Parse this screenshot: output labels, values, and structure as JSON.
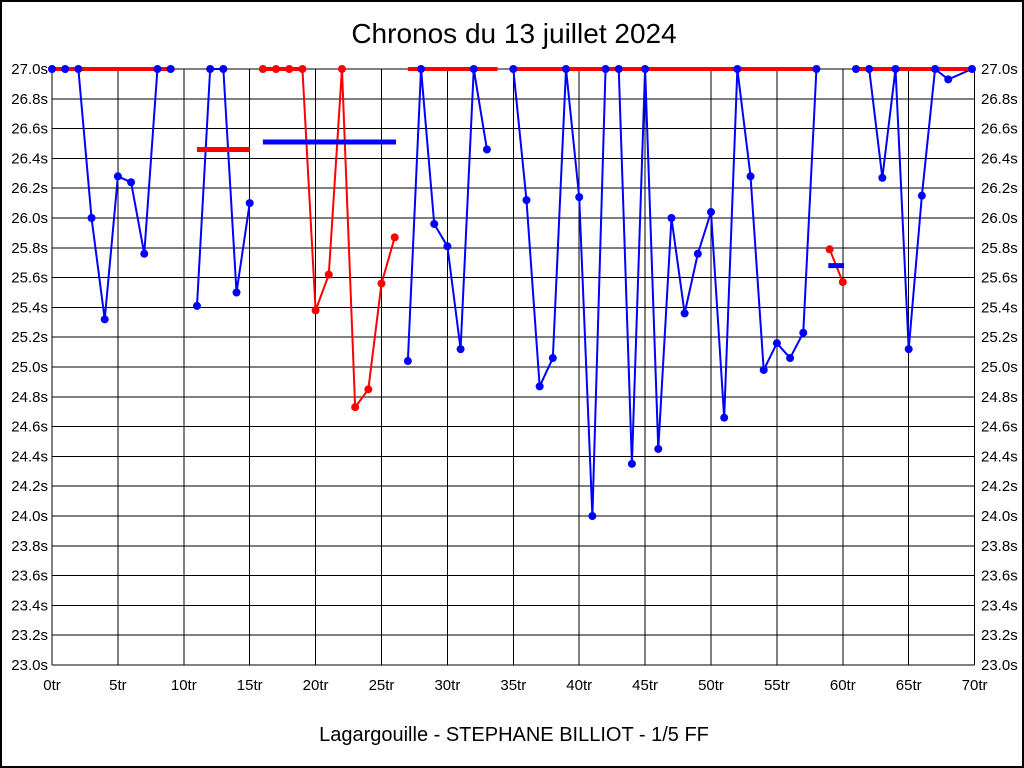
{
  "title": "Chronos du 13 juillet 2024",
  "caption": "Lagargouille - STEPHANE BILLIOT - 1/5 FF",
  "colors": {
    "blue": "#0000ff",
    "red": "#ff0000",
    "grid": "#000000",
    "background": "#ffffff"
  },
  "axes": {
    "y_left_labels": [
      "27.0s",
      "26.8s",
      "26.6s",
      "26.4s",
      "26.2s",
      "26.0s",
      "25.8s",
      "25.6s",
      "25.4s",
      "25.2s",
      "25.0s",
      "24.8s",
      "24.6s",
      "24.4s",
      "24.2s",
      "24.0s",
      "23.8s",
      "23.6s",
      "23.4s",
      "23.2s",
      "23.0s"
    ],
    "y_right_labels": [
      "27.0s",
      "26.8s",
      "26.6s",
      "26.4s",
      "26.2s",
      "26.0s",
      "25.8s",
      "25.6s",
      "25.4s",
      "25.2s",
      "25.0s",
      "24.8s",
      "24.6s",
      "24.4s",
      "24.2s",
      "24.0s",
      "23.8s",
      "23.6s",
      "23.4s",
      "23.2s",
      "23.0s"
    ],
    "x_labels": [
      "0tr",
      "5tr",
      "10tr",
      "15tr",
      "20tr",
      "25tr",
      "30tr",
      "35tr",
      "40tr",
      "45tr",
      "50tr",
      "55tr",
      "60tr",
      "65tr",
      "70tr"
    ]
  },
  "chart_data": {
    "type": "line",
    "title": "Chronos du 13 juillet 2024",
    "xlabel_unit": "tr",
    "ylabel_unit": "s",
    "xlim": [
      0,
      70
    ],
    "ylim": [
      23.0,
      27.0
    ],
    "x_tick_step": 5,
    "y_tick_step": 0.2,
    "grid": true,
    "clip_ceiling": 27.0,
    "series": [
      {
        "name": "lap-times-blue",
        "color": "#0000ff",
        "marker": true,
        "segments": [
          [
            [
              0,
              27.0
            ],
            [
              1,
              27.0
            ],
            [
              2,
              27.0
            ],
            [
              3,
              26.0
            ],
            [
              4,
              25.32
            ],
            [
              5,
              26.28
            ],
            [
              6,
              26.24
            ],
            [
              7,
              25.76
            ],
            [
              8,
              27.0
            ],
            [
              9,
              27.0
            ]
          ],
          [
            [
              11,
              25.41
            ],
            [
              12,
              27.0
            ],
            [
              13,
              27.0
            ],
            [
              14,
              25.5
            ],
            [
              15,
              26.1
            ]
          ],
          [
            [
              27,
              25.04
            ],
            [
              28,
              27.0
            ],
            [
              29,
              25.96
            ],
            [
              30,
              25.81
            ],
            [
              31,
              25.12
            ],
            [
              32,
              27.0
            ],
            [
              33,
              26.46
            ]
          ],
          [
            [
              35,
              27.0
            ],
            [
              36,
              26.12
            ],
            [
              37,
              24.87
            ],
            [
              38,
              25.06
            ],
            [
              39,
              27.0
            ],
            [
              40,
              26.14
            ],
            [
              41,
              24.0
            ],
            [
              42,
              27.0
            ],
            [
              43,
              27.0
            ],
            [
              44,
              24.35
            ],
            [
              45,
              27.0
            ],
            [
              46,
              24.45
            ],
            [
              47,
              26.0
            ],
            [
              48,
              25.36
            ],
            [
              49,
              25.76
            ],
            [
              50,
              26.04
            ],
            [
              51,
              24.66
            ],
            [
              52,
              27.0
            ],
            [
              53,
              26.28
            ],
            [
              54,
              24.98
            ],
            [
              55,
              25.16
            ],
            [
              56,
              25.06
            ],
            [
              57,
              25.23
            ],
            [
              58,
              27.0
            ]
          ],
          [
            [
              61,
              27.0
            ],
            [
              62,
              27.0
            ],
            [
              63,
              26.27
            ],
            [
              64,
              27.0
            ],
            [
              65,
              25.12
            ],
            [
              66,
              26.15
            ],
            [
              67,
              27.0
            ],
            [
              68,
              26.93
            ],
            [
              69.8,
              27.0
            ]
          ]
        ]
      },
      {
        "name": "lap-times-red",
        "color": "#ff0000",
        "marker": true,
        "segments": [
          [
            [
              16,
              27.0
            ],
            [
              17,
              27.0
            ],
            [
              18,
              27.0
            ],
            [
              19,
              27.0
            ],
            [
              20,
              25.38
            ],
            [
              21,
              25.62
            ],
            [
              22,
              27.0
            ],
            [
              23,
              24.73
            ],
            [
              24,
              24.85
            ],
            [
              25,
              25.56
            ],
            [
              26,
              25.87
            ]
          ],
          [
            [
              59,
              25.79
            ],
            [
              60,
              25.57
            ]
          ]
        ],
        "flat_spans_at_ceiling": [
          [
            0,
            9.3
          ],
          [
            16,
            19
          ],
          [
            27,
            33.8
          ],
          [
            35,
            58.2
          ],
          [
            61,
            70
          ]
        ]
      }
    ],
    "average_segments": [
      {
        "color": "#ff0000",
        "x_from": 11,
        "x_to": 15,
        "value": 26.46
      },
      {
        "color": "#0000ff",
        "x_from": 16,
        "x_to": 26.1,
        "value": 26.51
      },
      {
        "color": "#0000ff",
        "x_from": 58.9,
        "x_to": 60.1,
        "value": 25.68
      }
    ]
  }
}
